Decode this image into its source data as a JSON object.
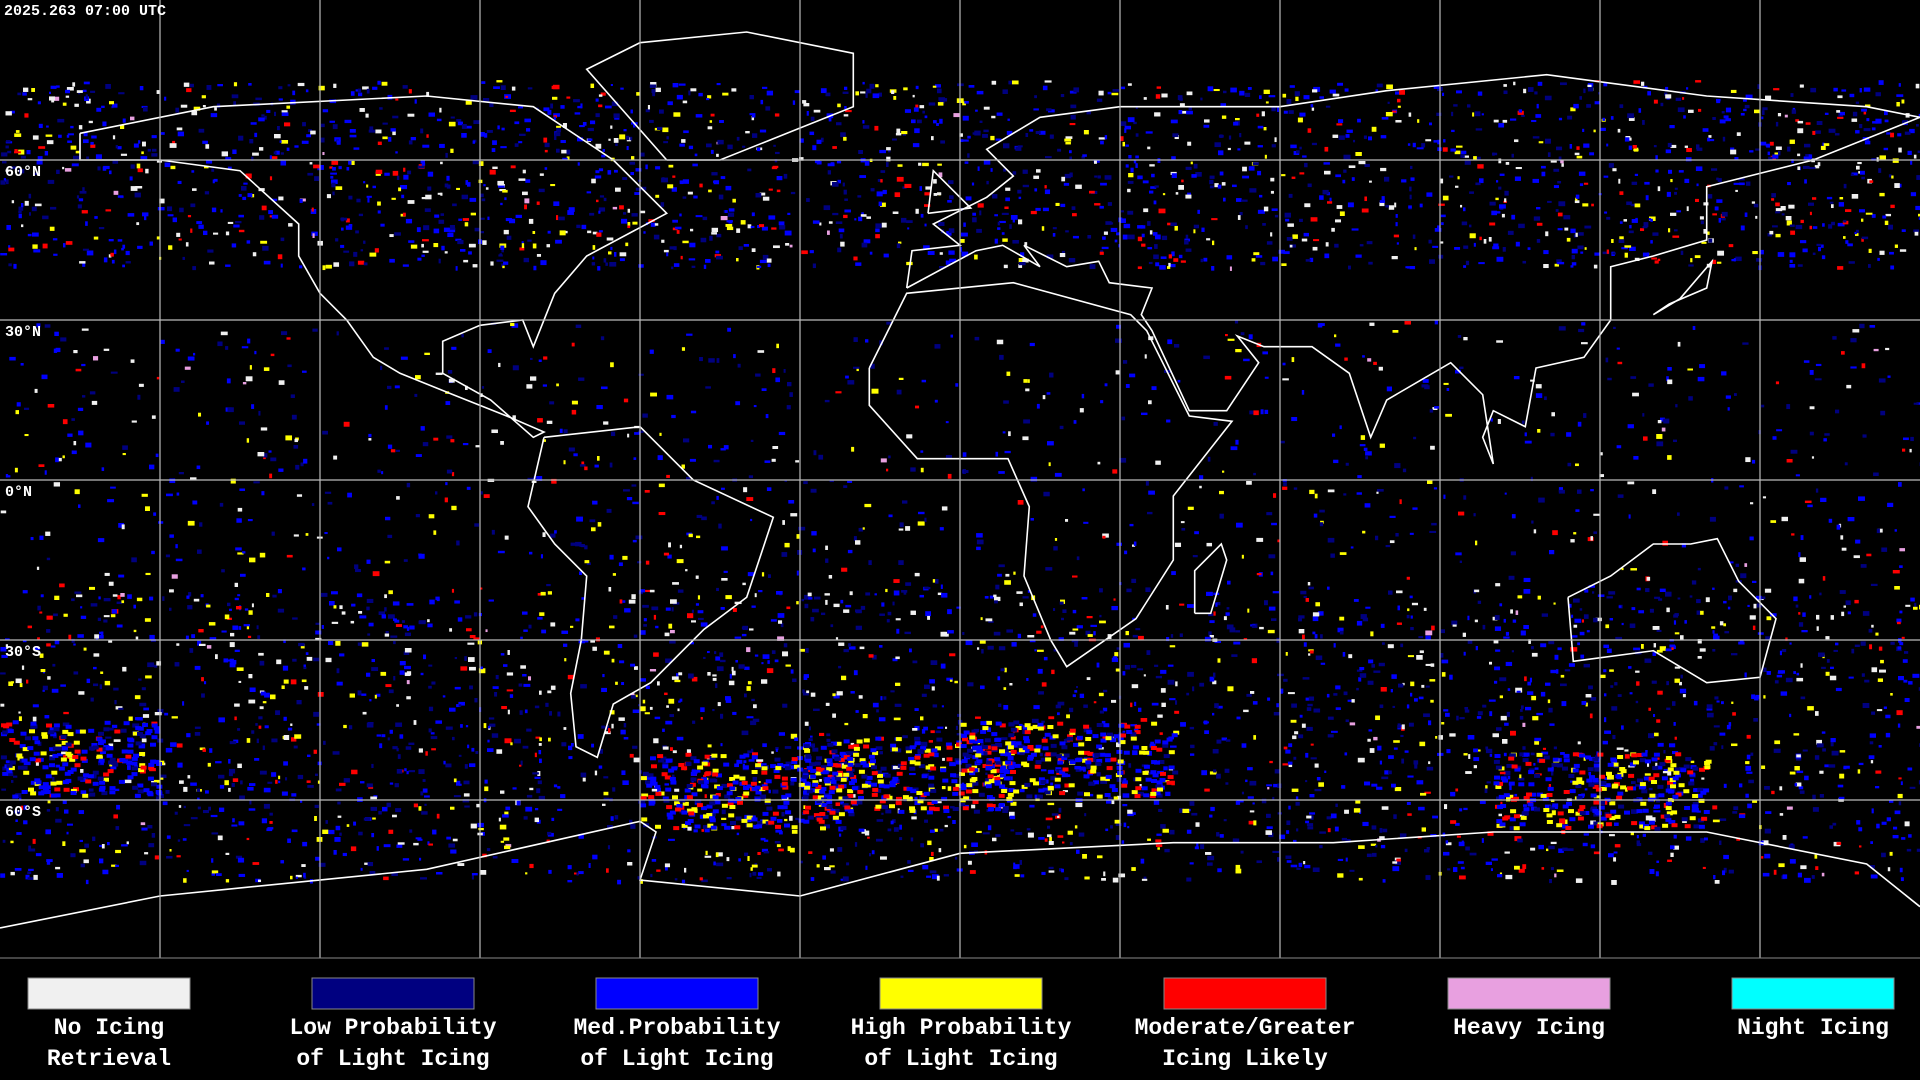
{
  "header": {
    "timestamp": "2025.263 07:00 UTC"
  },
  "map": {
    "latitude_labels": [
      "60°N",
      "30°N",
      "0°N",
      "30°S",
      "60°S"
    ]
  },
  "legend": [
    {
      "label_lines": [
        "No Icing",
        "Retrieval"
      ],
      "color": "#f0f0f0"
    },
    {
      "label_lines": [
        "Low Probability",
        "of Light Icing"
      ],
      "color": "#000080"
    },
    {
      "label_lines": [
        "Med.Probability",
        "of Light Icing"
      ],
      "color": "#0000ff"
    },
    {
      "label_lines": [
        "High Probability",
        "of Light Icing"
      ],
      "color": "#ffff00"
    },
    {
      "label_lines": [
        "Moderate/Greater",
        "Icing Likely"
      ],
      "color": "#ff0000"
    },
    {
      "label_lines": [
        "Heavy Icing"
      ],
      "color": "#e8a0e0"
    },
    {
      "label_lines": [
        "Night Icing"
      ],
      "color": "#00ffff"
    }
  ]
}
